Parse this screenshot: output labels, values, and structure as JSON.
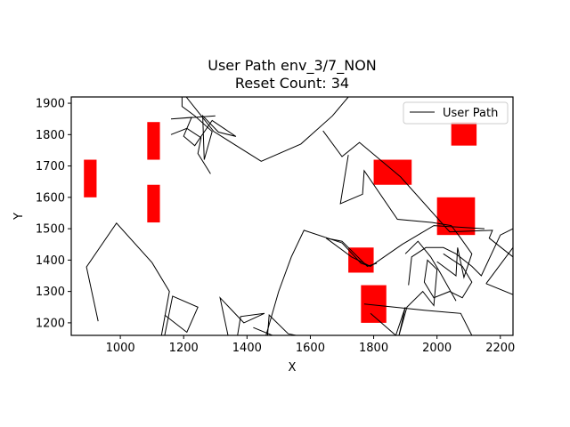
{
  "chart_data": {
    "type": "line",
    "title": "User Path env_3/7_NON",
    "subtitle": "Reset Count: 34",
    "xlabel": "X",
    "ylabel": "Y",
    "xlim": [
      845,
      2240
    ],
    "ylim": [
      1160,
      1920
    ],
    "xticks": [
      1000,
      1200,
      1400,
      1600,
      1800,
      2000,
      2200
    ],
    "yticks": [
      1200,
      1300,
      1400,
      1500,
      1600,
      1700,
      1800,
      1900
    ],
    "legend": {
      "position": "top-right",
      "entries": [
        "User Path"
      ]
    },
    "colors": {
      "path": "#000000",
      "obstacle": "#ff0000"
    },
    "series": [
      {
        "name": "User Path",
        "segments": [
          [
            [
              930,
              1205
            ],
            [
              893,
              1378
            ],
            [
              988,
              1518
            ],
            [
              1100,
              1392
            ],
            [
              1155,
              1300
            ],
            [
              1130,
              1160
            ]
          ],
          [
            [
              1195,
              1920
            ],
            [
              1195,
              1890
            ],
            [
              1235,
              1860
            ],
            [
              1290,
              1810
            ],
            [
              1265,
              1720
            ],
            [
              1260,
              1860
            ],
            [
              1310,
              1808
            ],
            [
              1365,
              1794
            ],
            [
              1290,
              1845
            ],
            [
              1235,
              1765
            ],
            [
              1200,
              1795
            ],
            [
              1225,
              1855
            ],
            [
              1160,
              1850
            ],
            [
              1300,
              1860
            ]
          ],
          [
            [
              1160,
              1800
            ],
            [
              1210,
              1820
            ],
            [
              1255,
              1790
            ],
            [
              1245,
              1740
            ],
            [
              1285,
              1675
            ]
          ],
          [
            [
              1208,
              1920
            ],
            [
              1295,
              1810
            ],
            [
              1445,
              1715
            ],
            [
              1570,
              1770
            ],
            [
              1670,
              1860
            ],
            [
              1720,
              1920
            ]
          ],
          [
            [
              1640,
              1812
            ],
            [
              1700,
              1730
            ],
            [
              1755,
              1775
            ],
            [
              1885,
              1665
            ],
            [
              2040,
              1490
            ],
            [
              2175,
              1495
            ],
            [
              2165,
              1470
            ],
            [
              2240,
              1410
            ]
          ],
          [
            [
              1720,
              1735
            ],
            [
              1695,
              1580
            ],
            [
              1765,
              1610
            ],
            [
              1770,
              1685
            ],
            [
              1875,
              1530
            ],
            [
              1985,
              1520
            ],
            [
              2045,
              1510
            ],
            [
              2075,
              1470
            ],
            [
              2110,
              1420
            ],
            [
              2085,
              1345
            ],
            [
              2065,
              1440
            ],
            [
              2060,
              1350
            ],
            [
              2000,
              1395
            ]
          ],
          [
            [
              1650,
              1470
            ],
            [
              1730,
              1410
            ],
            [
              1790,
              1380
            ],
            [
              1890,
              1450
            ],
            [
              1990,
              1510
            ],
            [
              2150,
              1500
            ]
          ],
          [
            [
              1460,
              1160
            ],
            [
              1500,
              1300
            ],
            [
              1540,
              1410
            ],
            [
              1580,
              1495
            ],
            [
              1700,
              1455
            ],
            [
              1760,
              1390
            ],
            [
              1790,
              1380
            ]
          ],
          [
            [
              1340,
              1160
            ],
            [
              1315,
              1280
            ],
            [
              1390,
              1200
            ],
            [
              1455,
              1230
            ],
            [
              1380,
              1220
            ],
            [
              1370,
              1160
            ],
            [
              1415,
              1160
            ],
            [
              1480,
              1160
            ],
            [
              1420,
              1185
            ]
          ],
          [
            [
              1140,
              1160
            ],
            [
              1165,
              1285
            ],
            [
              1245,
              1250
            ],
            [
              1210,
              1170
            ],
            [
              1140,
              1225
            ]
          ],
          [
            [
              1465,
              1160
            ],
            [
              1470,
              1225
            ],
            [
              1530,
              1165
            ],
            [
              1555,
              1160
            ]
          ],
          [
            [
              1770,
              1260
            ],
            [
              1865,
              1250
            ],
            [
              1960,
              1240
            ],
            [
              2075,
              1230
            ],
            [
              2110,
              1160
            ]
          ],
          [
            [
              1790,
              1230
            ],
            [
              1870,
              1160
            ],
            [
              1900,
              1250
            ],
            [
              1880,
              1160
            ],
            [
              1905,
              1250
            ],
            [
              1955,
              1300
            ],
            [
              1990,
              1255
            ],
            [
              2000,
              1370
            ],
            [
              1970,
              1400
            ],
            [
              1960,
              1330
            ],
            [
              1990,
              1280
            ],
            [
              2040,
              1300
            ],
            [
              2080,
              1280
            ],
            [
              2110,
              1330
            ],
            [
              2080,
              1380
            ],
            [
              2020,
              1420
            ]
          ],
          [
            [
              1910,
              1320
            ],
            [
              1920,
              1410
            ],
            [
              1965,
              1440
            ],
            [
              2020,
              1440
            ],
            [
              2060,
              1420
            ],
            [
              2110,
              1380
            ],
            [
              2140,
              1350
            ],
            [
              2200,
              1480
            ],
            [
              2240,
              1500
            ]
          ],
          [
            [
              1900,
              1420
            ],
            [
              1940,
              1460
            ],
            [
              1980,
              1410
            ],
            [
              2010,
              1360
            ],
            [
              2060,
              1270
            ]
          ],
          [
            [
              2155,
              1325
            ],
            [
              2240,
              1290
            ]
          ],
          [
            [
              2155,
              1325
            ],
            [
              2240,
              1440
            ]
          ],
          [
            [
              1650,
              1470
            ],
            [
              1700,
              1460
            ],
            [
              1730,
              1430
            ],
            [
              1780,
              1380
            ],
            [
              1810,
              1390
            ]
          ]
        ]
      }
    ],
    "obstacles": [
      {
        "x0": 885,
        "x1": 925,
        "y0": 1600,
        "y1": 1720
      },
      {
        "x0": 1085,
        "x1": 1125,
        "y0": 1520,
        "y1": 1640
      },
      {
        "x0": 1085,
        "x1": 1125,
        "y0": 1720,
        "y1": 1840
      },
      {
        "x0": 1800,
        "x1": 1920,
        "y0": 1640,
        "y1": 1720
      },
      {
        "x0": 2000,
        "x1": 2120,
        "y0": 1480,
        "y1": 1600
      },
      {
        "x0": 2045,
        "x1": 2125,
        "y0": 1765,
        "y1": 1840
      },
      {
        "x0": 1720,
        "x1": 1800,
        "y0": 1360,
        "y1": 1440
      },
      {
        "x0": 1760,
        "x1": 1840,
        "y0": 1200,
        "y1": 1320
      }
    ]
  }
}
